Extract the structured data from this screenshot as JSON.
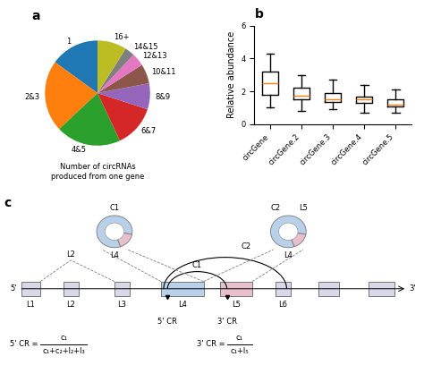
{
  "chart_data": [
    {
      "type": "pie",
      "title": "a",
      "categories": [
        "1",
        "2&3",
        "4&5",
        "6&7",
        "8&9",
        "10&11",
        "12&13",
        "14&15",
        "16+"
      ],
      "values": [
        15,
        22,
        20,
        13,
        8,
        6,
        4,
        3,
        9
      ],
      "annotations": [
        "Number of circRNAs",
        "produced from one gene"
      ]
    },
    {
      "type": "box",
      "title": "b",
      "categories": [
        "circGene",
        "circGene.2",
        "circGene.3",
        "circGene.4",
        "circGene.5"
      ],
      "boxes": [
        {
          "whislo": 1.0,
          "q1": 1.8,
          "med": 2.5,
          "q3": 3.2,
          "whishi": 4.3
        },
        {
          "whislo": 0.8,
          "q1": 1.5,
          "med": 1.75,
          "q3": 2.2,
          "whishi": 3.0
        },
        {
          "whislo": 0.9,
          "q1": 1.35,
          "med": 1.5,
          "q3": 1.9,
          "whishi": 2.7
        },
        {
          "whislo": 0.7,
          "q1": 1.3,
          "med": 1.5,
          "q3": 1.7,
          "whishi": 2.4
        },
        {
          "whislo": 0.7,
          "q1": 1.1,
          "med": 1.2,
          "q3": 1.5,
          "whishi": 2.1
        }
      ],
      "y_label": "Relative abundance",
      "ylim": [
        0,
        6
      ],
      "yticks": [
        0,
        2,
        4,
        6
      ]
    },
    {
      "type": "diagram",
      "title": "c",
      "colors": [
        "#B8D0E8",
        "#E8C0CC",
        "#D8D8E8"
      ],
      "annotations": [
        "5'",
        "3'",
        "L1",
        "L2",
        "L3",
        "L4",
        "L5",
        "L6",
        "5' CR",
        "3' CR",
        "C1",
        "C2",
        "C1",
        "L4",
        "C2",
        "L5",
        "L4",
        "L2",
        "5' CR =",
        "c₁",
        "c₁+c₂+l₂+l₃",
        "3' CR =",
        "c₁",
        "c₁+l₅"
      ]
    }
  ]
}
